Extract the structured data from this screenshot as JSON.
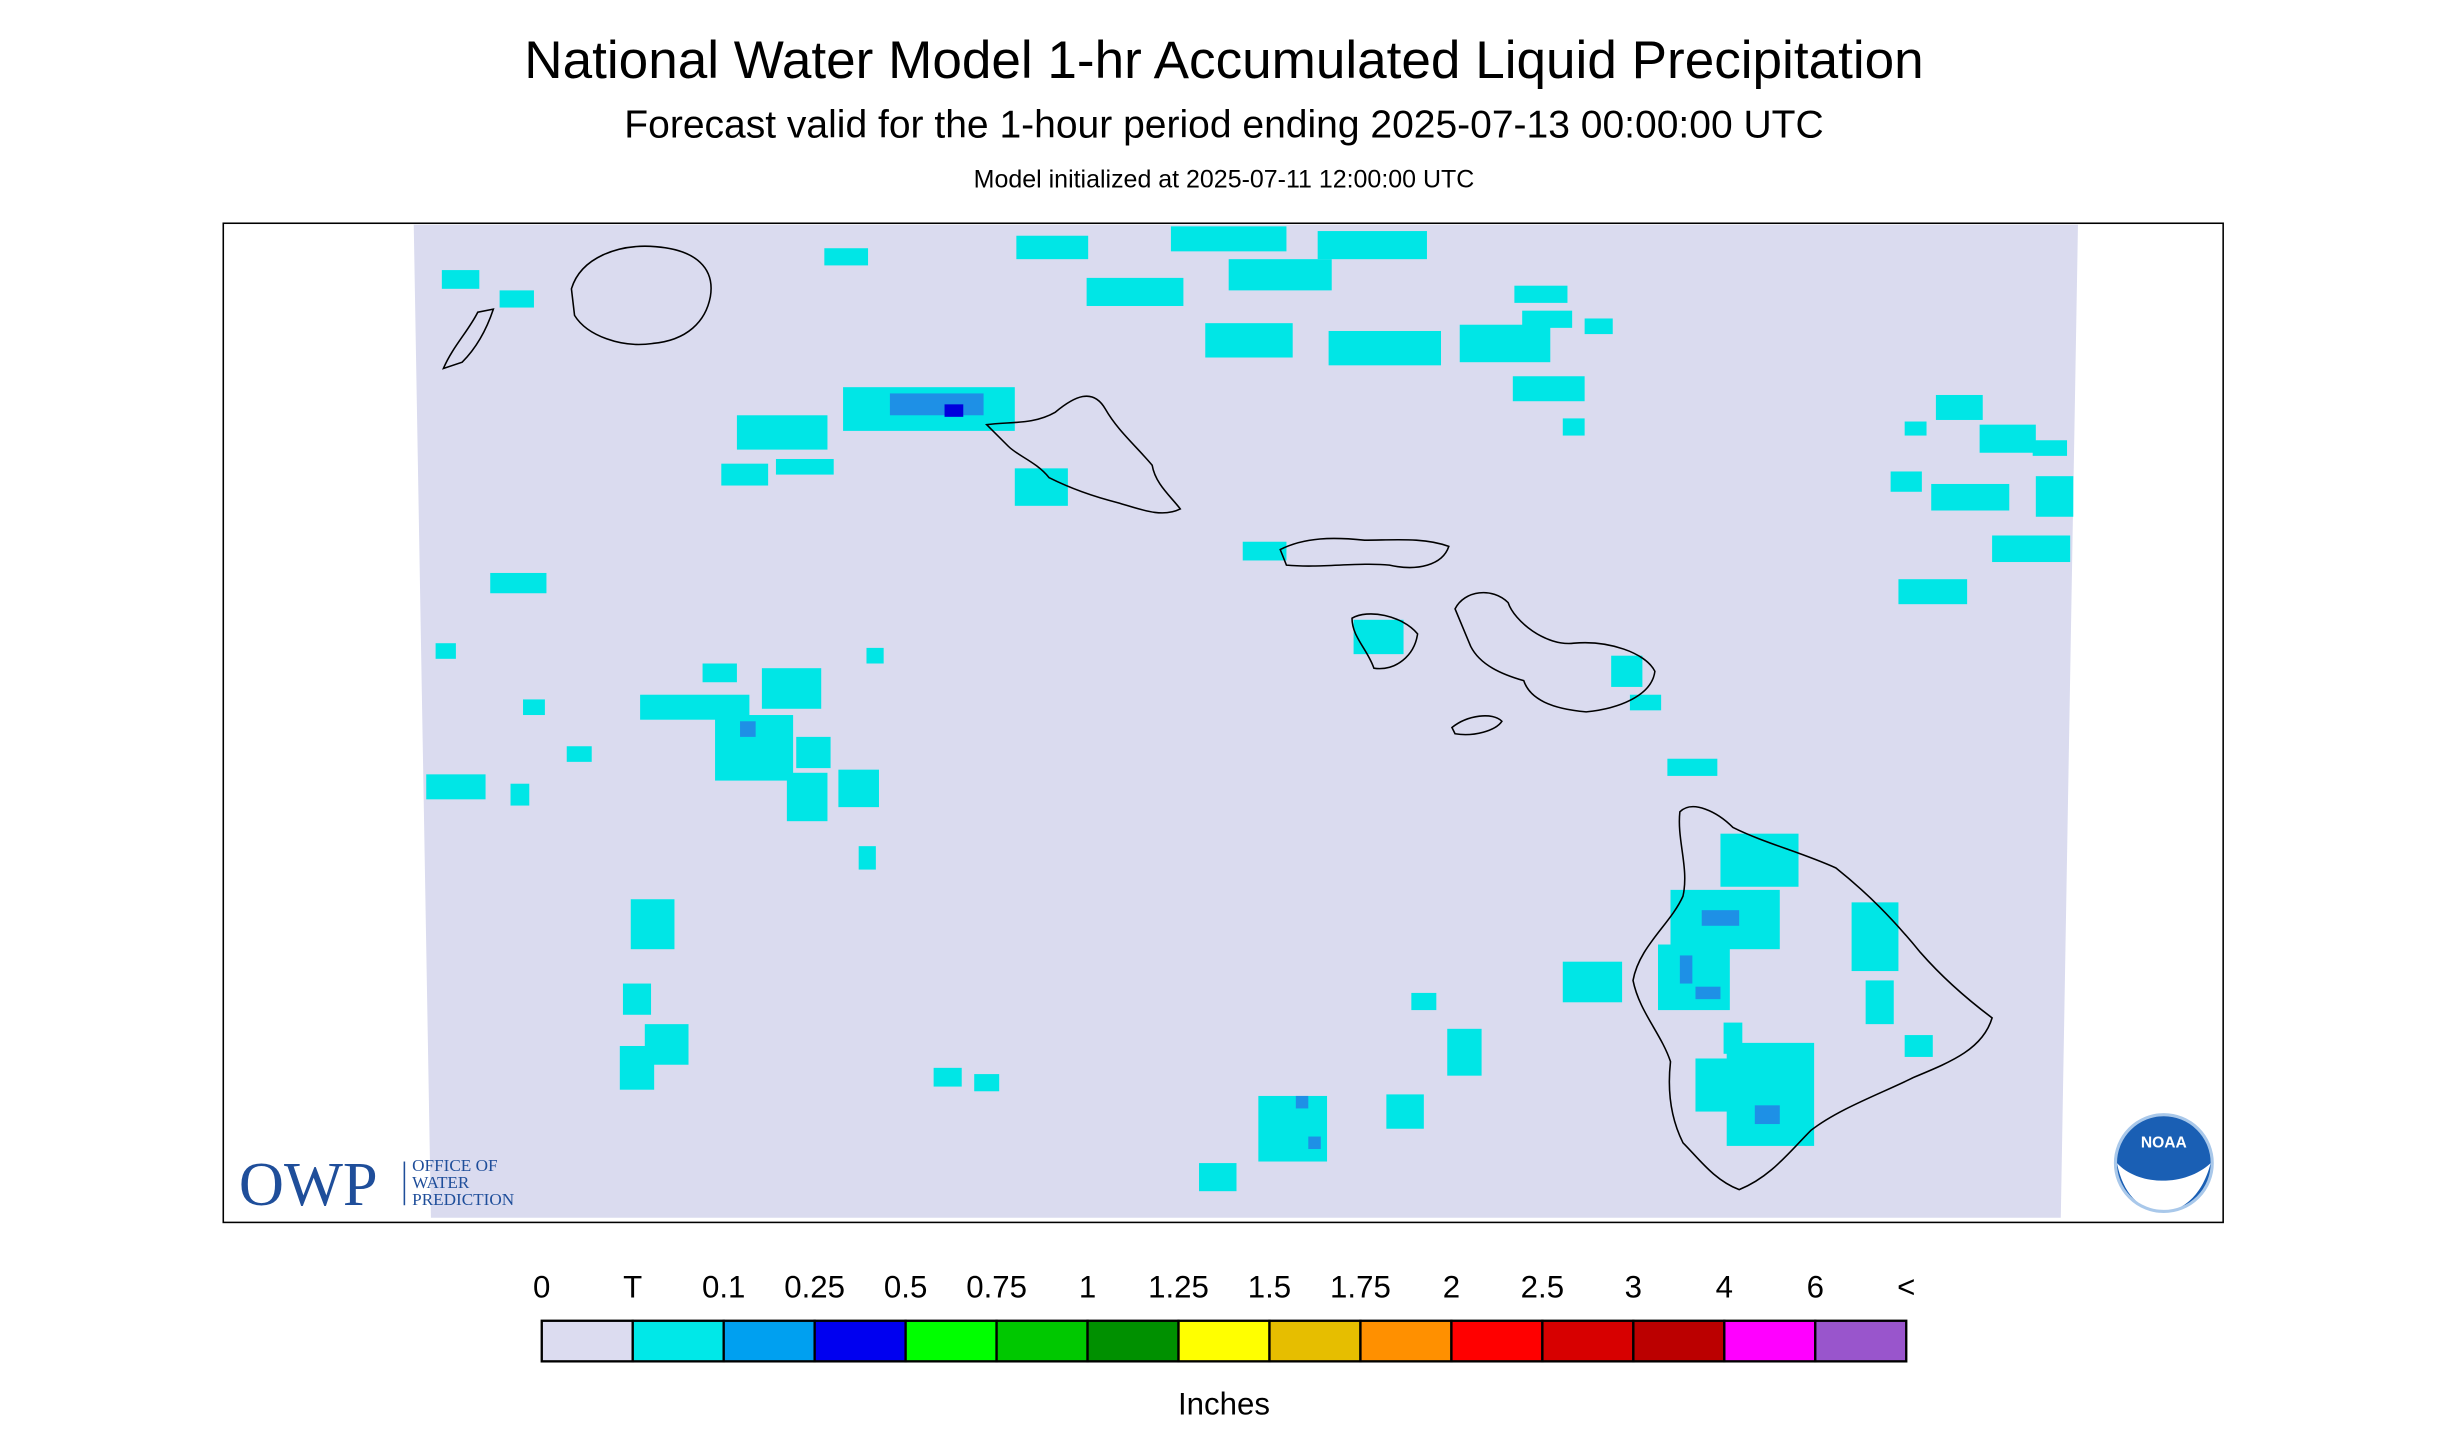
{
  "header": {
    "title": "National Water Model 1-hr Accumulated Liquid Precipitation",
    "subtitle": "Forecast valid for the 1-hour period ending 2025-07-13 00:00:00 UTC",
    "initialized": "Model initialized at 2025-07-11 12:00:00 UTC"
  },
  "legend": {
    "labels": [
      "0",
      "T",
      "0.1",
      "0.25",
      "0.5",
      "0.75",
      "1",
      "1.25",
      "1.5",
      "1.75",
      "2",
      "2.5",
      "3",
      "4",
      "6",
      "<"
    ],
    "colors": [
      "#dcdcf0",
      "#00e8e8",
      "#00a0f0",
      "#0000f0",
      "#00ff00",
      "#00c800",
      "#009000",
      "#ffff00",
      "#e6be00",
      "#ff9000",
      "#ff0000",
      "#d70000",
      "#bb0000",
      "#ff00ff",
      "#9955cc"
    ],
    "unit": "Inches"
  },
  "logos": {
    "owp": "OWP",
    "owp_lines": [
      "OFFICE OF",
      "WATER",
      "PREDICTION"
    ],
    "noaa": "NOAA"
  }
}
